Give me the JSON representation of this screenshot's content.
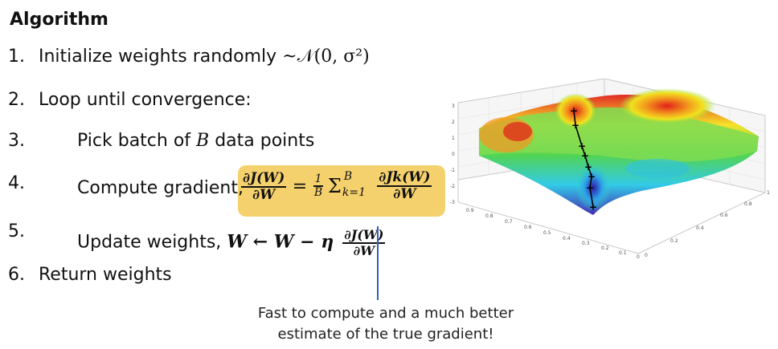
{
  "heading": "Algorithm",
  "steps": [
    {
      "num": "1.",
      "text": "Initialize weights randomly ",
      "math": "~𝒩(0, σ²)"
    },
    {
      "num": "2.",
      "text": "Loop until convergence:"
    },
    {
      "num": "3.",
      "text": "Pick batch of ",
      "math": "B",
      "after": " data points"
    },
    {
      "num": "4.",
      "text": "Compute gradient, "
    },
    {
      "num": "5.",
      "text": "Update weights, "
    },
    {
      "num": "6.",
      "text": "Return weights"
    }
  ],
  "formulas": {
    "gradient_numer": "∂J(W)",
    "gradient_denom": "∂W",
    "eq": "=",
    "one_over_b_numer": "1",
    "one_over_b_denom": "B",
    "sum": "Σ",
    "sum_upper": "B",
    "sum_lower": "k=1",
    "jk_numer": "∂Jk(W)",
    "jk_denom": "∂W",
    "update_lhs": "W ← W − η",
    "update_numer": "∂J(W)",
    "update_denom": "∂W"
  },
  "note": {
    "line1": "Fast to compute and a much better",
    "line2": "estimate of the true gradient!"
  },
  "surface_plot": {
    "z_ticks": [
      "3",
      "2",
      "1",
      "0",
      "-1",
      "-2",
      "-3"
    ],
    "x_ticks": [
      "0.9",
      "0.8",
      "0.7",
      "0.6",
      "0.5",
      "0.4",
      "0.3",
      "0.2",
      "0.1",
      "0"
    ],
    "y_ticks": [
      "0",
      "0.2",
      "0.4",
      "0.6",
      "0.8",
      "1"
    ]
  },
  "colors": {
    "highlight": "#f5d16e",
    "pointer": "#2b63c6"
  }
}
